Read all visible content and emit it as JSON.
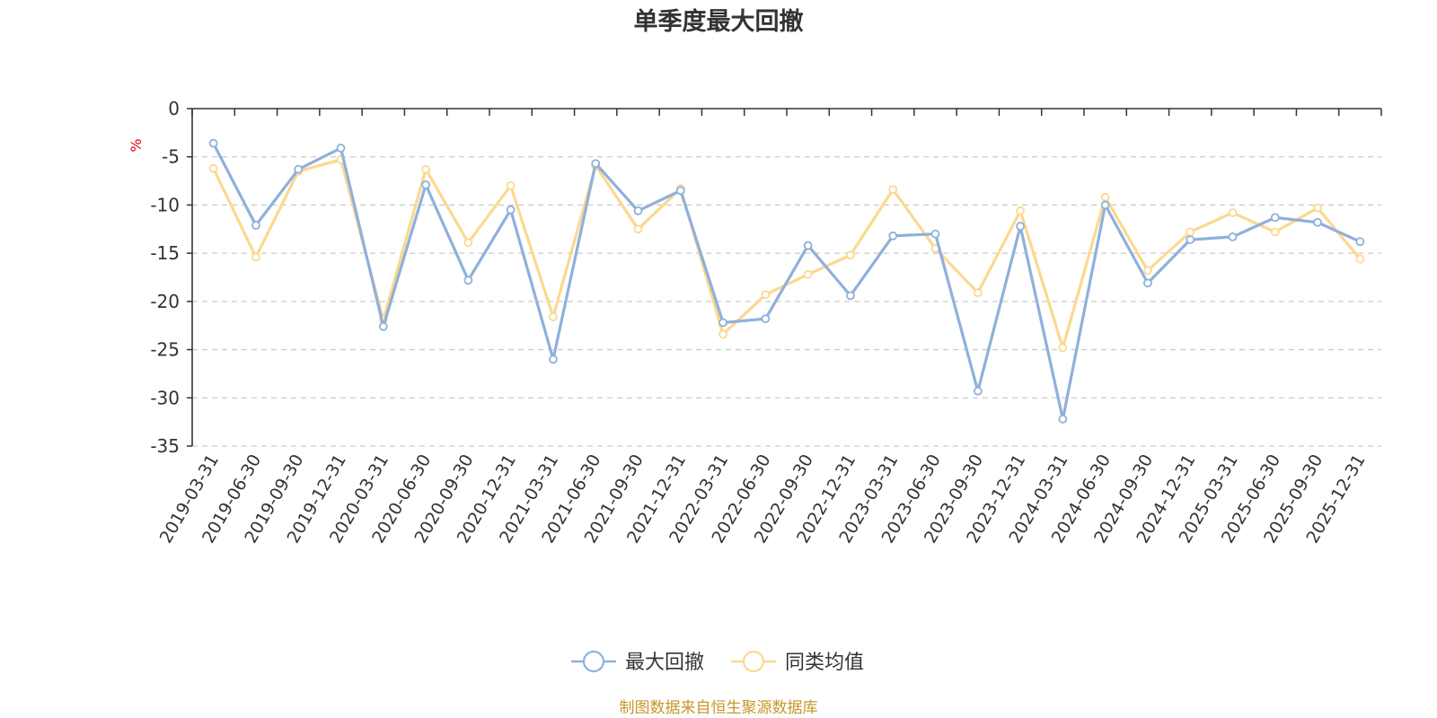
{
  "chart_data": {
    "type": "line",
    "title": "单季度最大回撤",
    "ylabel": "%",
    "ylim": [
      -35,
      0
    ],
    "yticks": [
      0,
      -5,
      -10,
      -15,
      -20,
      -25,
      -30,
      -35
    ],
    "grid": true,
    "legend_position": "bottom",
    "categories": [
      "2019-03-31",
      "2019-06-30",
      "2019-09-30",
      "2019-12-31",
      "2020-03-31",
      "2020-06-30",
      "2020-09-30",
      "2020-12-31",
      "2021-03-31",
      "2021-06-30",
      "2021-09-30",
      "2021-12-31",
      "2022-03-31",
      "2022-06-30",
      "2022-09-30",
      "2022-12-31",
      "2023-03-31",
      "2023-06-30",
      "2023-09-30",
      "2023-12-31",
      "2024-03-31",
      "2024-06-30",
      "2024-09-30",
      "2024-12-31",
      "2025-03-31",
      "2025-06-30",
      "2025-09-30",
      "2025-12-31"
    ],
    "series": [
      {
        "name": "最大回撤",
        "color": "#8fb0dc",
        "values": [
          -3.6,
          -12.1,
          -6.3,
          -4.1,
          -22.6,
          -7.9,
          -17.8,
          -10.5,
          -26.0,
          -5.7,
          -10.6,
          -8.5,
          -22.2,
          -21.8,
          -14.2,
          -19.4,
          -13.2,
          -13.0,
          -29.3,
          -12.2,
          -32.2,
          -10.0,
          -18.1,
          -13.6,
          -13.3,
          -11.3,
          -11.8,
          -13.8
        ]
      },
      {
        "name": "同类均值",
        "color": "#fbd98e",
        "values": [
          -6.2,
          -15.4,
          -6.5,
          -5.3,
          -21.9,
          -6.3,
          -13.9,
          -8.0,
          -21.6,
          -5.9,
          -12.5,
          -8.3,
          -23.4,
          -19.3,
          -17.2,
          -15.2,
          -8.4,
          -14.5,
          -19.1,
          -10.6,
          -24.8,
          -9.2,
          -16.8,
          -12.8,
          -10.8,
          -12.8,
          -10.3,
          -15.6
        ]
      }
    ]
  },
  "footer": {
    "source_text": "制图数据来自恒生聚源数据库",
    "source_color": "#c8962a"
  },
  "colors": {
    "unit_label": "#e60012",
    "axis": "#333333",
    "grid": "#cccccc"
  }
}
